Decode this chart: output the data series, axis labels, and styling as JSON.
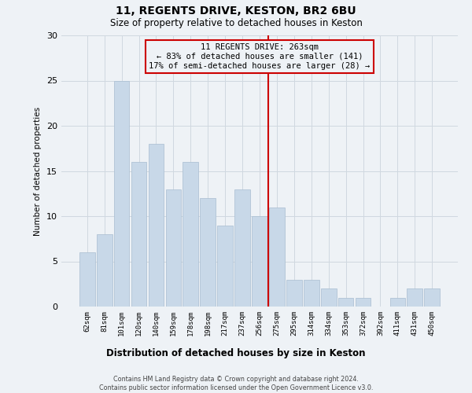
{
  "title": "11, REGENTS DRIVE, KESTON, BR2 6BU",
  "subtitle": "Size of property relative to detached houses in Keston",
  "xlabel": "Distribution of detached houses by size in Keston",
  "ylabel": "Number of detached properties",
  "categories": [
    "62sqm",
    "81sqm",
    "101sqm",
    "120sqm",
    "140sqm",
    "159sqm",
    "178sqm",
    "198sqm",
    "217sqm",
    "237sqm",
    "256sqm",
    "275sqm",
    "295sqm",
    "314sqm",
    "334sqm",
    "353sqm",
    "372sqm",
    "392sqm",
    "411sqm",
    "431sqm",
    "450sqm"
  ],
  "values": [
    6,
    8,
    25,
    16,
    18,
    13,
    16,
    12,
    9,
    13,
    10,
    11,
    3,
    3,
    2,
    1,
    1,
    0,
    1,
    2,
    2
  ],
  "bar_color": "#c8d8e8",
  "bar_edge_color": "#a8bdd0",
  "grid_color": "#d0d8e0",
  "background_color": "#eef2f6",
  "property_label": "11 REGENTS DRIVE: 263sqm",
  "annotation_line1": "← 83% of detached houses are smaller (141)",
  "annotation_line2": "17% of semi-detached houses are larger (28) →",
  "annotation_box_color": "#cc0000",
  "vline_color": "#cc0000",
  "vline_x": 10.5,
  "ylim": [
    0,
    30
  ],
  "yticks": [
    0,
    5,
    10,
    15,
    20,
    25,
    30
  ],
  "footer1": "Contains HM Land Registry data © Crown copyright and database right 2024.",
  "footer2": "Contains public sector information licensed under the Open Government Licence v3.0."
}
